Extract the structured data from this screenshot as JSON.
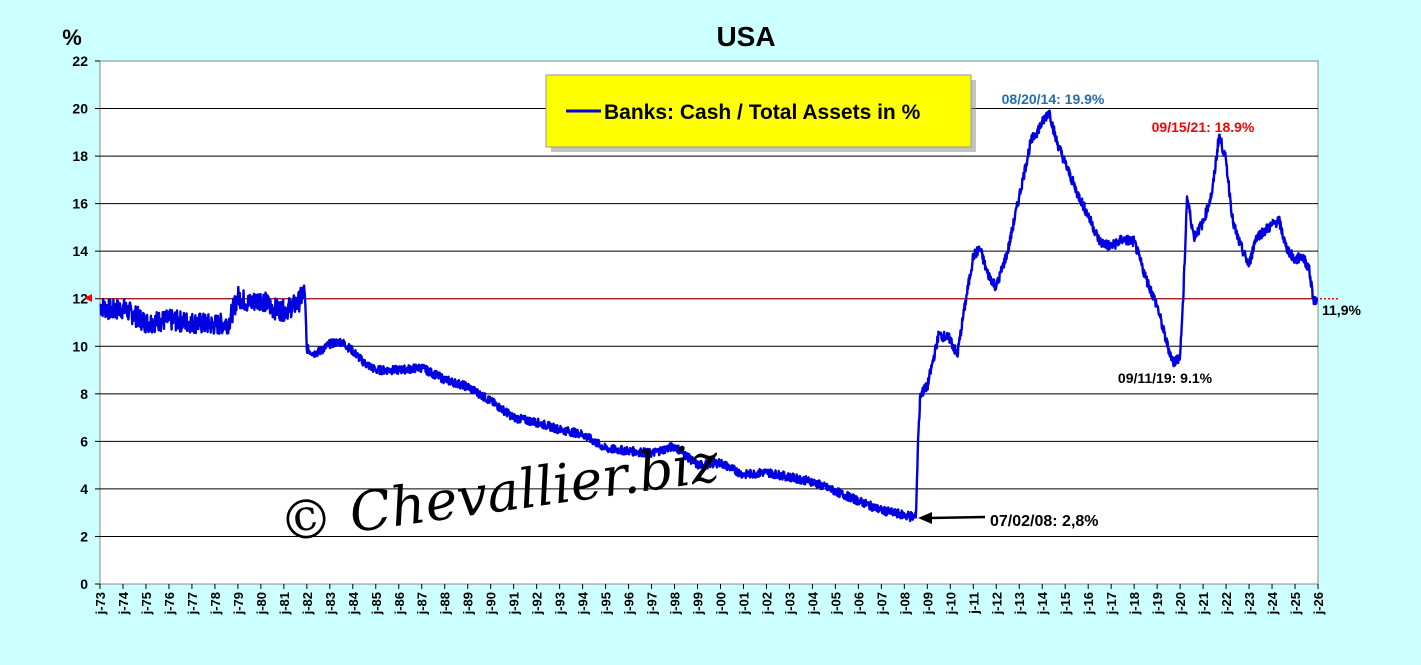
{
  "chart_data": {
    "type": "line",
    "title": "USA",
    "ylabel": "%",
    "ylim": [
      0,
      22
    ],
    "yticks": [
      0,
      2,
      4,
      6,
      8,
      10,
      12,
      14,
      16,
      18,
      20,
      22
    ],
    "xlim": [
      1973.0,
      2026.0
    ],
    "xticks": [
      "j-73",
      "j-74",
      "j-75",
      "j-76",
      "j-77",
      "j-78",
      "j-79",
      "j-80",
      "j-81",
      "j-82",
      "j-83",
      "j-84",
      "j-85",
      "j-86",
      "j-87",
      "j-88",
      "j-89",
      "j-90",
      "j-91",
      "j-92",
      "j-93",
      "j-94",
      "j-95",
      "j-96",
      "j-97",
      "j-98",
      "j-99",
      "j-00",
      "j-01",
      "j-02",
      "j-03",
      "j-04",
      "j-05",
      "j-06",
      "j-07",
      "j-08",
      "j-09",
      "j-10",
      "j-11",
      "j-12",
      "j-13",
      "j-14",
      "j-15",
      "j-16",
      "j-17",
      "j-18",
      "j-19",
      "j-20",
      "j-21",
      "j-22",
      "j-23",
      "j-24",
      "j-25",
      "j-26"
    ],
    "grid": "horizontal",
    "legend": "top-center",
    "series": [
      {
        "name": "Banks: Cash / Total Assets in %",
        "color": "#0000e0",
        "x": [
          1973.0,
          1973.5,
          1974.0,
          1974.5,
          1975.0,
          1976.0,
          1977.0,
          1978.0,
          1978.6,
          1979.0,
          1979.5,
          1980.0,
          1980.5,
          1981.0,
          1981.6,
          1981.9,
          1982.0,
          1982.3,
          1982.6,
          1983.0,
          1983.5,
          1984.0,
          1984.5,
          1985.0,
          1986.0,
          1987.0,
          1988.0,
          1989.0,
          1989.5,
          1990.0,
          1991.0,
          1992.0,
          1993.0,
          1994.0,
          1995.0,
          1996.0,
          1997.0,
          1998.0,
          1999.0,
          2000.0,
          2001.0,
          2002.0,
          2003.0,
          2004.0,
          2005.0,
          2006.0,
          2007.0,
          2008.0,
          2008.5,
          2008.6,
          2008.7,
          2009.0,
          2009.5,
          2010.0,
          2010.3,
          2010.6,
          2011.0,
          2011.3,
          2011.6,
          2012.0,
          2012.5,
          2013.0,
          2013.5,
          2014.0,
          2014.3,
          2014.6,
          2015.0,
          2015.5,
          2016.0,
          2016.5,
          2017.0,
          2017.5,
          2018.0,
          2018.5,
          2019.0,
          2019.4,
          2019.7,
          2020.0,
          2020.15,
          2020.3,
          2020.6,
          2021.0,
          2021.4,
          2021.7,
          2022.0,
          2022.3,
          2022.6,
          2023.0,
          2023.3,
          2023.6,
          2024.0,
          2024.3,
          2024.6,
          2025.0,
          2025.3,
          2025.6,
          2025.8,
          2025.95
        ],
        "y": [
          11.7,
          11.5,
          11.6,
          11.3,
          11.0,
          11.1,
          11.0,
          10.9,
          11.0,
          12.1,
          11.8,
          12.0,
          11.6,
          11.5,
          11.8,
          12.3,
          9.9,
          9.7,
          9.8,
          10.1,
          10.2,
          9.8,
          9.3,
          9.0,
          9.0,
          9.1,
          8.6,
          8.3,
          8.0,
          7.7,
          7.0,
          6.8,
          6.5,
          6.3,
          5.7,
          5.6,
          5.5,
          5.8,
          5.0,
          5.1,
          4.6,
          4.7,
          4.5,
          4.3,
          3.9,
          3.5,
          3.1,
          2.9,
          2.8,
          6.1,
          8.0,
          8.3,
          10.5,
          10.3,
          9.6,
          11.5,
          13.8,
          14.1,
          13.1,
          12.5,
          14.0,
          16.3,
          18.6,
          19.4,
          19.9,
          18.7,
          17.7,
          16.5,
          15.5,
          14.4,
          14.2,
          14.5,
          14.4,
          12.9,
          11.7,
          10.2,
          9.3,
          9.6,
          12.3,
          16.3,
          14.6,
          15.2,
          16.5,
          18.9,
          17.8,
          15.2,
          14.3,
          13.4,
          14.6,
          14.8,
          15.1,
          15.3,
          14.2,
          13.6,
          13.8,
          13.3,
          12.0,
          11.9
        ]
      }
    ],
    "reference_line": {
      "value": 12,
      "color": "#ff0000"
    },
    "annotations": [
      {
        "text": "08/20/14: 19.9%",
        "x": 2014.6,
        "y": 19.9,
        "color": "#1f6fb2"
      },
      {
        "text": "09/15/21: 18.9%",
        "x": 2021.7,
        "y": 18.9,
        "color": "#ff0000"
      },
      {
        "text": "09/11/19: 9.1%",
        "x": 2019.7,
        "y": 9.1,
        "color": "#000000"
      },
      {
        "text": "07/02/08: 2,8%",
        "x": 2008.5,
        "y": 2.8,
        "color": "#000000"
      },
      {
        "text": "11,9%",
        "x": 2025.95,
        "y": 11.9,
        "color": "#000000"
      }
    ],
    "watermark": "© Chevallier.biz"
  }
}
